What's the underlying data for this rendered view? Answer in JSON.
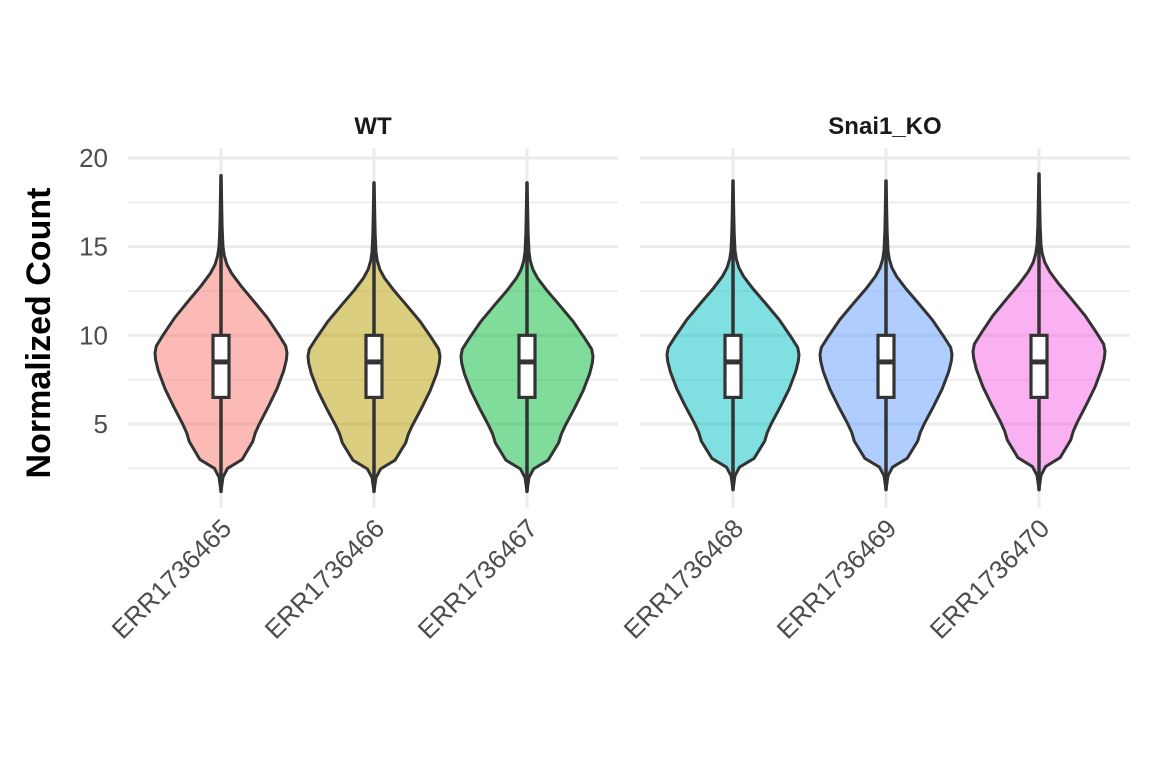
{
  "chart_data": {
    "type": "violin",
    "title": "",
    "xlabel": "",
    "ylabel": "Normalized Count",
    "ylim": [
      0.5,
      21.5
    ],
    "y_ticks": [
      5,
      10,
      15,
      20
    ],
    "y_tick_labels": [
      "5",
      "10",
      "15",
      "20"
    ],
    "grid": true,
    "legend": "none",
    "x_tick_label_angle": 45,
    "facets": [
      {
        "label": "WT",
        "samples": [
          {
            "name": "ERR1736465",
            "color": "#F8766D",
            "min": 1.2,
            "q1": 6.5,
            "median": 8.5,
            "q3": 10.0,
            "max": 19.0,
            "mode": 9.0
          },
          {
            "name": "ERR1736466",
            "color": "#B79F00",
            "min": 1.2,
            "q1": 6.5,
            "median": 8.5,
            "q3": 10.0,
            "max": 18.6,
            "mode": 9.0
          },
          {
            "name": "ERR1736467",
            "color": "#00BA38",
            "min": 1.2,
            "q1": 6.5,
            "median": 8.5,
            "q3": 10.0,
            "max": 18.6,
            "mode": 9.0
          }
        ]
      },
      {
        "label": "Snai1_KO",
        "samples": [
          {
            "name": "ERR1736468",
            "color": "#00BFC4",
            "min": 1.3,
            "q1": 6.5,
            "median": 8.5,
            "q3": 10.0,
            "max": 18.7,
            "mode": 9.0
          },
          {
            "name": "ERR1736469",
            "color": "#619CFF",
            "min": 1.3,
            "q1": 6.5,
            "median": 8.5,
            "q3": 10.0,
            "max": 18.7,
            "mode": 9.0
          },
          {
            "name": "ERR1736470",
            "color": "#F564E3",
            "min": 1.3,
            "q1": 6.5,
            "median": 8.5,
            "q3": 10.0,
            "max": 19.1,
            "mode": 9.0
          }
        ]
      }
    ],
    "violin_profile": {
      "description": "relative half-width of each violin at the given y values (data units)",
      "y": [
        1.2,
        2.0,
        2.5,
        3.0,
        4.0,
        4.5,
        5.0,
        6.0,
        7.0,
        8.0,
        8.6,
        9.0,
        9.4,
        10.0,
        11.0,
        12.0,
        12.8,
        13.5,
        14.0,
        14.5,
        15.0,
        16.0,
        17.0,
        18.0,
        19.0
      ],
      "width": [
        0.0,
        0.03,
        0.1,
        0.32,
        0.48,
        0.52,
        0.58,
        0.72,
        0.85,
        0.95,
        0.99,
        1.0,
        0.98,
        0.88,
        0.7,
        0.48,
        0.3,
        0.16,
        0.09,
        0.05,
        0.03,
        0.018,
        0.012,
        0.008,
        0.0
      ]
    }
  }
}
